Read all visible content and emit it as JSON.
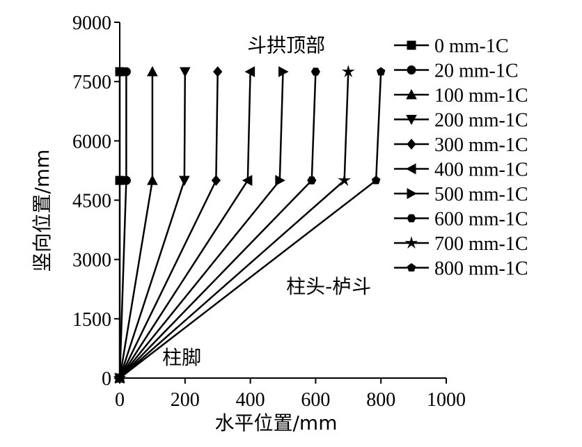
{
  "chart_data": {
    "type": "line",
    "xlabel": "水平位置/mm",
    "ylabel": "竖向位置/mm",
    "xlim": [
      0,
      1000
    ],
    "ylim": [
      0,
      9000
    ],
    "x_ticks": [
      0,
      200,
      400,
      600,
      800,
      1000
    ],
    "y_ticks": [
      0,
      1500,
      3000,
      4500,
      6000,
      7500,
      9000
    ],
    "x_tick_labels": [
      "0",
      "200",
      "400",
      "600",
      "800",
      "1000"
    ],
    "y_tick_labels": [
      "0",
      "1500",
      "3000",
      "4500",
      "6000",
      "7500",
      "9000"
    ],
    "grid": false,
    "legend_position": "right",
    "annotations": [
      {
        "text": "斗拱顶部",
        "x": 510,
        "y": 8250
      },
      {
        "text": "柱头-栌斗",
        "x": 640,
        "y": 2150
      },
      {
        "text": "柱脚",
        "x": 190,
        "y": 350
      }
    ],
    "series": [
      {
        "name": "0 mm-1C",
        "marker": "square",
        "x": [
          0,
          0,
          0
        ],
        "y": [
          0,
          5000,
          7750
        ]
      },
      {
        "name": "20 mm-1C",
        "marker": "circle",
        "x": [
          0,
          20,
          20
        ],
        "y": [
          0,
          5000,
          7750
        ]
      },
      {
        "name": "100 mm-1C",
        "marker": "triangle-up",
        "x": [
          0,
          100,
          100
        ],
        "y": [
          0,
          5000,
          7750
        ]
      },
      {
        "name": "200 mm-1C",
        "marker": "triangle-down",
        "x": [
          0,
          198,
          200
        ],
        "y": [
          0,
          5000,
          7750
        ]
      },
      {
        "name": "300 mm-1C",
        "marker": "diamond",
        "x": [
          0,
          295,
          300
        ],
        "y": [
          0,
          5000,
          7750
        ]
      },
      {
        "name": "400 mm-1C",
        "marker": "triangle-left",
        "x": [
          0,
          392,
          400
        ],
        "y": [
          0,
          5000,
          7750
        ]
      },
      {
        "name": "500 mm-1C",
        "marker": "triangle-right",
        "x": [
          0,
          490,
          500
        ],
        "y": [
          0,
          5000,
          7750
        ]
      },
      {
        "name": "600 mm-1C",
        "marker": "hexagon",
        "x": [
          0,
          588,
          600
        ],
        "y": [
          0,
          5000,
          7750
        ]
      },
      {
        "name": "700 mm-1C",
        "marker": "star",
        "x": [
          0,
          688,
          700
        ],
        "y": [
          0,
          5000,
          7750
        ]
      },
      {
        "name": "800 mm-1C",
        "marker": "pentagon",
        "x": [
          0,
          785,
          800
        ],
        "y": [
          0,
          5000,
          7750
        ]
      }
    ]
  }
}
